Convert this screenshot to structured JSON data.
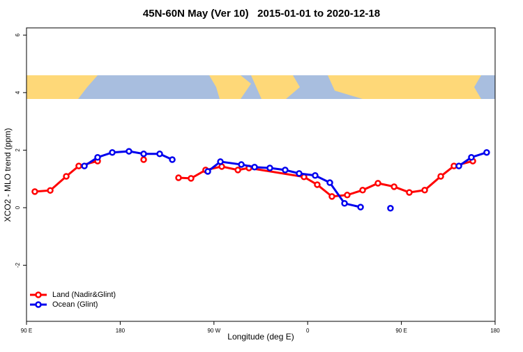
{
  "chart_data": {
    "type": "line",
    "title": "45N-60N May (Ver 10)   2015-01-01 to 2020-12-18",
    "x_label": "Longitude (deg E)",
    "y_label": "XCO2 - MLO trend (ppm)",
    "xlim": [
      90,
      540
    ],
    "ylim": [
      -3.95,
      6.25
    ],
    "xticks": [
      {
        "value": 90,
        "label": "90 E"
      },
      {
        "value": 180,
        "label": "180"
      },
      {
        "value": 270,
        "label": "90 W"
      },
      {
        "value": 360,
        "label": "0"
      },
      {
        "value": 450,
        "label": "90 E"
      },
      {
        "value": 540,
        "label": "180"
      }
    ],
    "yticks": [
      -2,
      0,
      2,
      4,
      6
    ],
    "legend": "bottom-left",
    "series": [
      {
        "name": "Land (Nadir&Glint)",
        "color": "#ff0000",
        "x": [
          98.0,
          112.8,
          128.2,
          140.2,
          158.3,
          null,
          202.5,
          null,
          236.0,
          248.0,
          262.0,
          277.5,
          293.0,
          303.6,
          356.5,
          369.2,
          383.3,
          398.0,
          412.8,
          427.5,
          443.0,
          457.6,
          472.4,
          487.8,
          500.5,
          518.6
        ],
        "values": [
          0.56,
          0.6,
          1.09,
          1.45,
          1.62,
          null,
          1.67,
          null,
          1.04,
          1.02,
          1.31,
          1.43,
          1.31,
          1.38,
          1.07,
          0.8,
          0.39,
          0.44,
          0.61,
          0.85,
          0.73,
          0.53,
          0.61,
          1.09,
          1.45,
          1.62
        ]
      },
      {
        "name": "Ocean (Glint)",
        "color": "#0000ee",
        "x": [
          145.6,
          158.3,
          172.4,
          188.4,
          202.5,
          217.9,
          230.0,
          null,
          264.1,
          276.2,
          296.3,
          309.0,
          323.7,
          338.4,
          351.8,
          367.2,
          381.3,
          395.4,
          410.8,
          null,
          439.5,
          null,
          505.2,
          517.2,
          531.9
        ],
        "values": [
          1.45,
          1.75,
          1.92,
          1.96,
          1.87,
          1.87,
          1.67,
          null,
          1.26,
          1.6,
          1.5,
          1.41,
          1.38,
          1.31,
          1.19,
          1.12,
          0.87,
          0.15,
          0.02,
          null,
          -0.02,
          null,
          1.45,
          1.75,
          1.92
        ]
      }
    ]
  }
}
